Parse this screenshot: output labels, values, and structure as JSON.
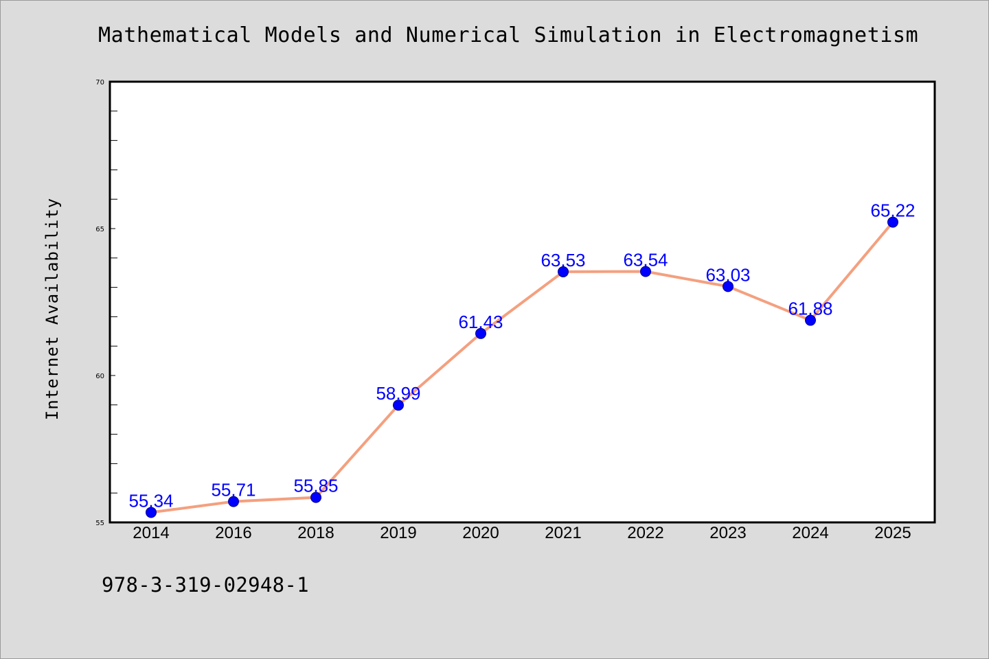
{
  "chart_data": {
    "type": "line",
    "title": "Mathematical Models and Numerical Simulation in Electromagnetism",
    "xlabel": "",
    "ylabel": "Internet Availability",
    "categories": [
      "2014",
      "2016",
      "2018",
      "2019",
      "2020",
      "2021",
      "2022",
      "2023",
      "2024",
      "2025"
    ],
    "series": [
      {
        "values": [
          55.34,
          55.71,
          55.85,
          58.99,
          61.43,
          63.53,
          63.54,
          63.03,
          61.88,
          65.22
        ],
        "labels": [
          "55.34",
          "55.71",
          "55.85",
          "58.99",
          "61.43",
          "63.53",
          "63.54",
          "63.03",
          "61.88",
          "65.22"
        ]
      }
    ],
    "ylim": [
      55,
      70
    ],
    "yticks": [
      "55",
      "60",
      "65",
      "70"
    ],
    "grid": false,
    "legend": "none",
    "colors": {
      "line": "#f4a07f",
      "marker": "#0000ff",
      "data_label": "#0000ff",
      "background": "#dcdcdc",
      "plot_background": "#ffffff"
    }
  },
  "footer": {
    "isbn": "978-3-319-02948-1"
  }
}
